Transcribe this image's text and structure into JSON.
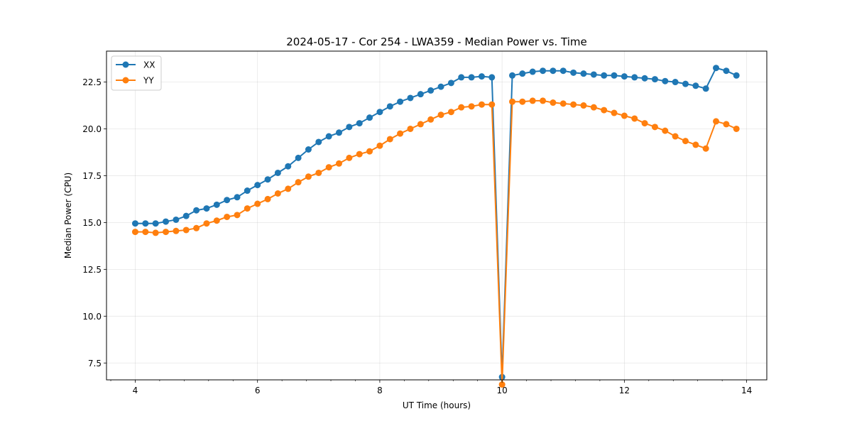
{
  "chart_data": {
    "type": "line",
    "title": "2024-05-17 - Cor 254 - LWA359 - Median Power vs. Time",
    "xlabel": "UT Time (hours)",
    "ylabel": "Median Power (CPU)",
    "xlim": [
      3.53,
      14.33
    ],
    "ylim": [
      6.6,
      24.15
    ],
    "xticks": [
      4,
      6,
      8,
      10,
      12,
      14
    ],
    "xtick_labels": [
      "4",
      "6",
      "8",
      "10",
      "12",
      "14"
    ],
    "yticks": [
      7.5,
      10.0,
      12.5,
      15.0,
      17.5,
      20.0,
      22.5
    ],
    "ytick_labels": [
      "7.5",
      "10.0",
      "12.5",
      "15.0",
      "17.5",
      "20.0",
      "22.5"
    ],
    "grid": true,
    "legend_position": "top-left",
    "x": [
      4.0,
      4.167,
      4.333,
      4.5,
      4.667,
      4.833,
      5.0,
      5.167,
      5.333,
      5.5,
      5.667,
      5.833,
      6.0,
      6.167,
      6.333,
      6.5,
      6.667,
      6.833,
      7.0,
      7.167,
      7.333,
      7.5,
      7.667,
      7.833,
      8.0,
      8.167,
      8.333,
      8.5,
      8.667,
      8.833,
      9.0,
      9.167,
      9.333,
      9.5,
      9.667,
      9.833,
      10.0,
      10.167,
      10.333,
      10.5,
      10.667,
      10.833,
      11.0,
      11.167,
      11.333,
      11.5,
      11.667,
      11.833,
      12.0,
      12.167,
      12.333,
      12.5,
      12.667,
      12.833,
      13.0,
      13.167,
      13.333,
      13.5,
      13.667,
      13.833
    ],
    "series": [
      {
        "name": "XX",
        "color": "#1f77b4",
        "values": [
          14.95,
          14.95,
          14.95,
          15.05,
          15.15,
          15.35,
          15.65,
          15.75,
          15.95,
          16.2,
          16.35,
          16.7,
          17.0,
          17.3,
          17.65,
          18.0,
          18.45,
          18.9,
          19.3,
          19.6,
          19.8,
          20.1,
          20.3,
          20.6,
          20.9,
          21.2,
          21.45,
          21.65,
          21.85,
          22.05,
          22.25,
          22.45,
          22.75,
          22.75,
          22.8,
          22.75,
          6.75,
          22.85,
          22.95,
          23.05,
          23.1,
          23.1,
          23.1,
          23.0,
          22.95,
          22.9,
          22.85,
          22.85,
          22.8,
          22.75,
          22.7,
          22.65,
          22.55,
          22.5,
          22.4,
          22.3,
          22.15,
          23.25,
          23.1,
          22.85
        ]
      },
      {
        "name": "YY",
        "color": "#ff7f0e",
        "values": [
          14.5,
          14.5,
          14.45,
          14.5,
          14.55,
          14.6,
          14.7,
          14.95,
          15.1,
          15.3,
          15.4,
          15.75,
          16.0,
          16.25,
          16.55,
          16.8,
          17.15,
          17.45,
          17.65,
          17.95,
          18.15,
          18.45,
          18.65,
          18.8,
          19.1,
          19.45,
          19.75,
          20.0,
          20.25,
          20.5,
          20.75,
          20.9,
          21.15,
          21.2,
          21.3,
          21.3,
          6.35,
          21.45,
          21.45,
          21.5,
          21.5,
          21.4,
          21.35,
          21.3,
          21.25,
          21.15,
          21.0,
          20.85,
          20.7,
          20.55,
          20.3,
          20.1,
          19.9,
          19.6,
          19.35,
          19.15,
          18.95,
          20.4,
          20.25,
          20.0
        ]
      }
    ]
  }
}
